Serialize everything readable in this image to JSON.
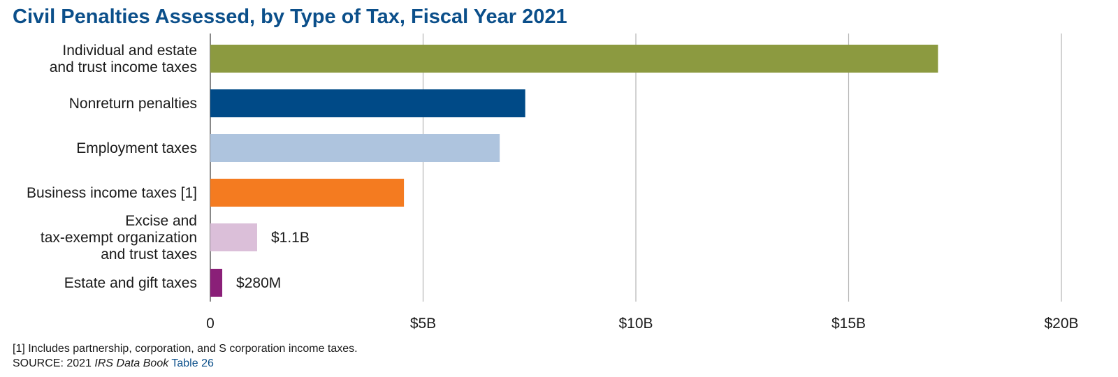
{
  "chart_data": {
    "type": "bar",
    "orientation": "horizontal",
    "title": "Civil Penalties Assessed, by Type of Tax, Fiscal Year 2021",
    "categories": [
      [
        "Individual and estate",
        "and trust income taxes"
      ],
      [
        "Nonreturn penalties"
      ],
      [
        "Employment taxes"
      ],
      [
        "Business income taxes [1]"
      ],
      [
        "Excise and",
        "tax-exempt organization",
        "and trust taxes"
      ],
      [
        "Estate and gift taxes"
      ]
    ],
    "values": [
      17.1,
      7.4,
      6.8,
      4.55,
      1.1,
      0.28
    ],
    "colors": [
      "#8c9a40",
      "#004a87",
      "#aec4de",
      "#f47b20",
      "#dbbfd9",
      "#8a1f78"
    ],
    "data_labels": [
      "",
      "",
      "",
      "",
      "$1.1B",
      "$280M"
    ],
    "xlim": [
      0,
      20
    ],
    "xticks": [
      0,
      5,
      10,
      15,
      20
    ],
    "xtick_labels": [
      "0",
      "$5B",
      "$10B",
      "$15B",
      "$20B"
    ],
    "grid": true,
    "legend": "none"
  },
  "footnote": {
    "line1": "[1] Includes partnership, corporation, and S corporation income taxes.",
    "source_prefix": "SOURCE: 2021 ",
    "source_italic": "IRS Data Book",
    "source_link": " Table 26"
  }
}
